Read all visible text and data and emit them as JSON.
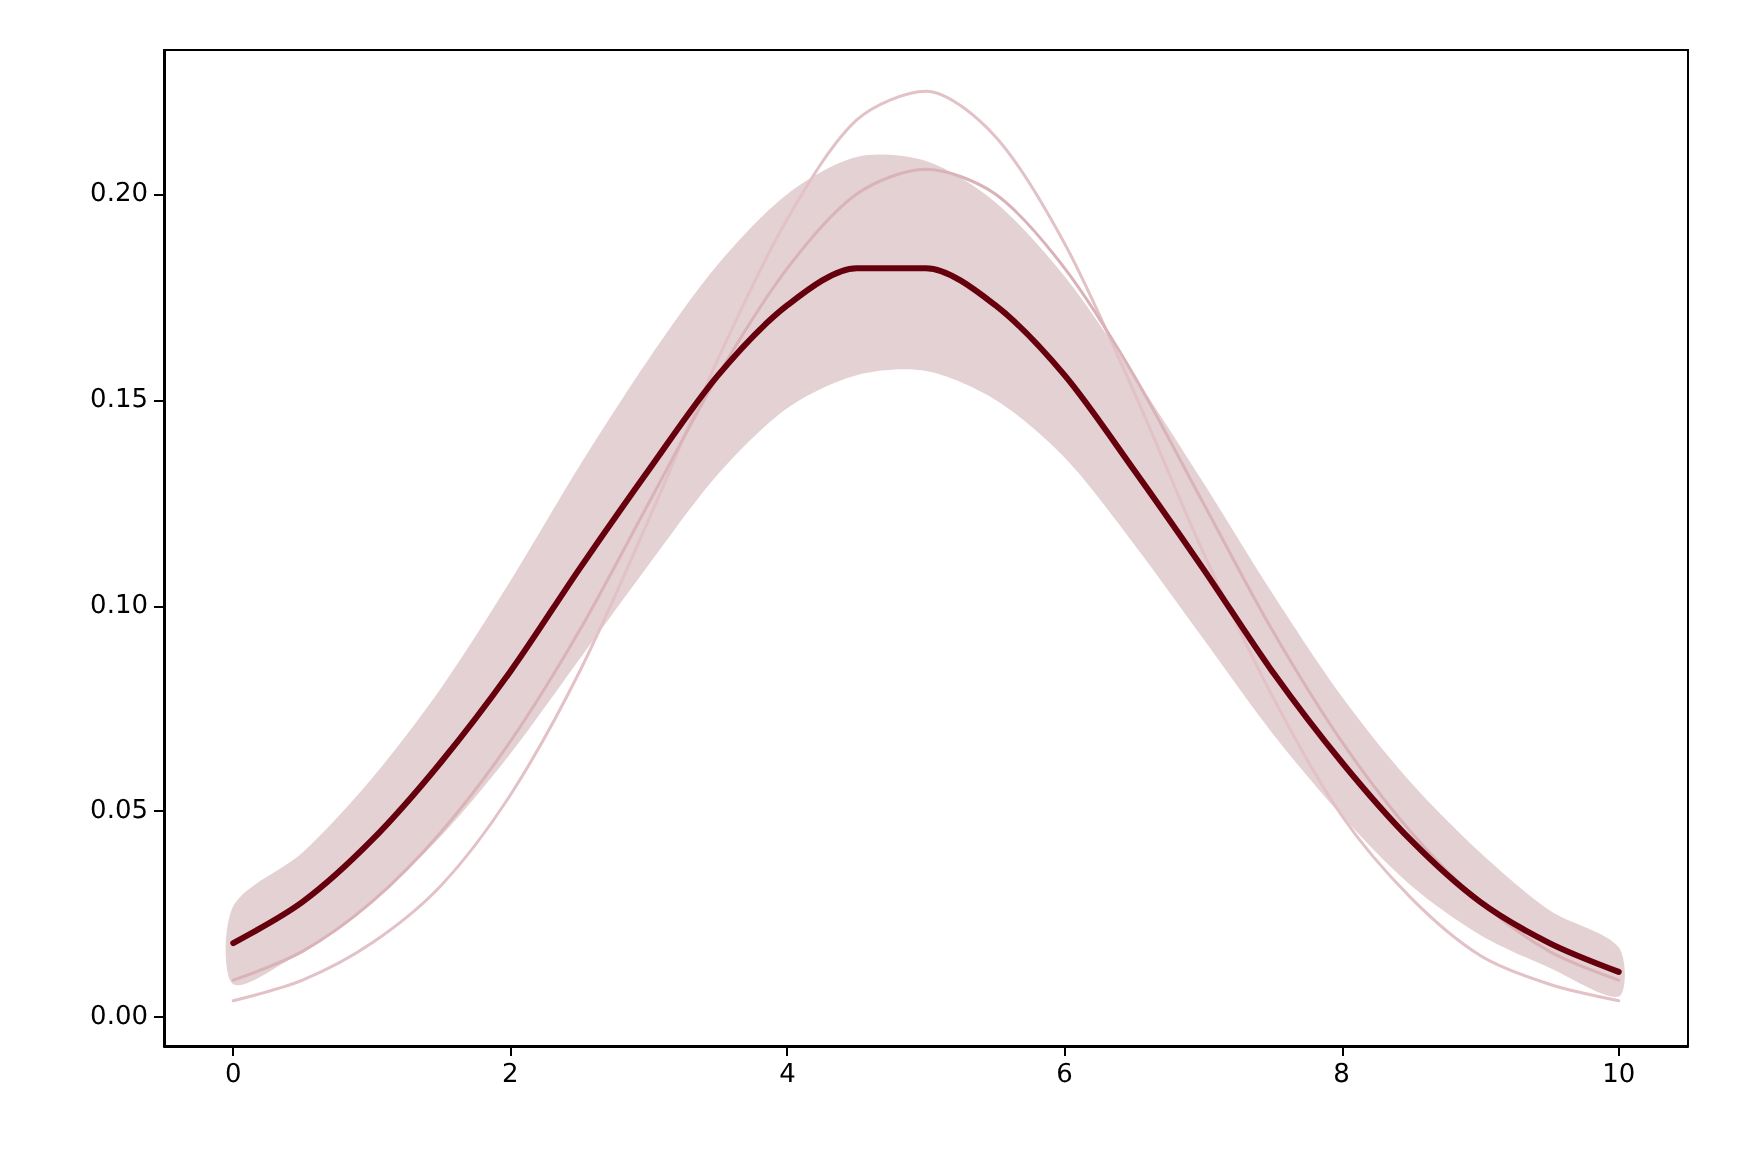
{
  "chart_data": {
    "type": "line",
    "x": [
      0,
      0.5,
      1,
      1.5,
      2,
      2.5,
      3,
      3.5,
      4,
      4.5,
      5,
      5.5,
      6,
      6.5,
      7,
      7.5,
      8,
      8.5,
      9,
      9.5,
      10
    ],
    "xlim": [
      -0.5,
      10.5
    ],
    "xticks": [
      0,
      2,
      4,
      6,
      8,
      10
    ],
    "ylim": [
      -0.007,
      0.235
    ],
    "yticks": [
      {
        "value": 0,
        "label": "0.00"
      },
      {
        "value": 0.05,
        "label": "0.05"
      },
      {
        "value": 0.1,
        "label": "0.10"
      },
      {
        "value": 0.15,
        "label": "0.15"
      },
      {
        "value": 0.2,
        "label": "0.20"
      }
    ],
    "marker": "none",
    "line_style": "solid",
    "series": [
      {
        "color": "#e2c2c6",
        "values": [
          0.004,
          0.009,
          0.018,
          0.032,
          0.054,
          0.084,
          0.121,
          0.16,
          0.194,
          0.218,
          0.225,
          0.214,
          0.188,
          0.152,
          0.113,
          0.078,
          0.049,
          0.029,
          0.015,
          0.008,
          0.004
        ]
      },
      {
        "color": "#d9b3b8",
        "values": [
          0.009,
          0.016,
          0.028,
          0.045,
          0.067,
          0.094,
          0.125,
          0.156,
          0.182,
          0.2,
          0.206,
          0.2,
          0.182,
          0.156,
          0.125,
          0.094,
          0.067,
          0.045,
          0.028,
          0.016,
          0.009
        ]
      },
      {
        "color": "#67000d",
        "values": [
          0.018,
          0.028,
          0.043,
          0.062,
          0.084,
          0.109,
          0.133,
          0.156,
          0.173,
          0.182,
          0.182,
          0.173,
          0.156,
          0.133,
          0.109,
          0.084,
          0.062,
          0.043,
          0.028,
          0.018,
          0.011
        ],
        "lower": [
          0.008,
          0.016,
          0.028,
          0.044,
          0.064,
          0.087,
          0.11,
          0.132,
          0.148,
          0.156,
          0.157,
          0.15,
          0.136,
          0.115,
          0.092,
          0.069,
          0.049,
          0.032,
          0.02,
          0.012,
          0.005
        ],
        "upper": [
          0.027,
          0.04,
          0.058,
          0.08,
          0.106,
          0.134,
          0.16,
          0.183,
          0.2,
          0.209,
          0.208,
          0.198,
          0.18,
          0.156,
          0.13,
          0.103,
          0.078,
          0.057,
          0.04,
          0.026,
          0.017
        ]
      }
    ]
  }
}
